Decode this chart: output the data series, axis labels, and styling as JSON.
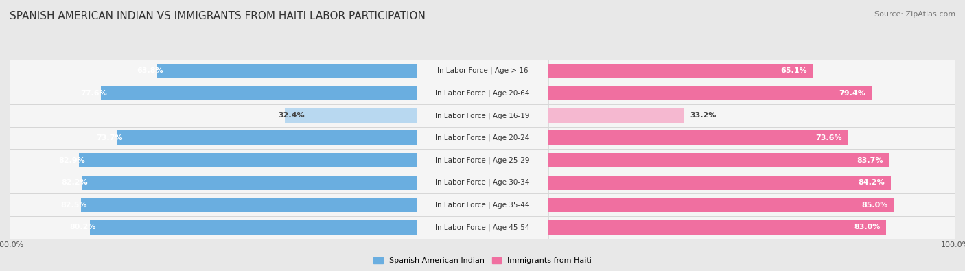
{
  "title": "Spanish American Indian vs Immigrants from Haiti Labor Participation",
  "source": "Source: ZipAtlas.com",
  "categories": [
    "In Labor Force | Age > 16",
    "In Labor Force | Age 20-64",
    "In Labor Force | Age 16-19",
    "In Labor Force | Age 20-24",
    "In Labor Force | Age 25-29",
    "In Labor Force | Age 30-34",
    "In Labor Force | Age 35-44",
    "In Labor Force | Age 45-54"
  ],
  "spanish_values": [
    63.8,
    77.6,
    32.4,
    73.7,
    82.9,
    82.2,
    82.5,
    80.2
  ],
  "haiti_values": [
    65.1,
    79.4,
    33.2,
    73.6,
    83.7,
    84.2,
    85.0,
    83.0
  ],
  "spanish_color": "#6aaee0",
  "spanish_color_light": "#b8d8f0",
  "haiti_color": "#f06fa0",
  "haiti_color_light": "#f5b8d0",
  "background_color": "#e8e8e8",
  "row_bg": "#f5f5f5",
  "row_border": "#d0d0d0",
  "max_value": 100.0,
  "legend_label_spanish": "Spanish American Indian",
  "legend_label_haiti": "Immigrants from Haiti",
  "title_fontsize": 11,
  "label_fontsize": 8,
  "cat_fontsize": 7.5,
  "tick_fontsize": 8,
  "source_fontsize": 8
}
